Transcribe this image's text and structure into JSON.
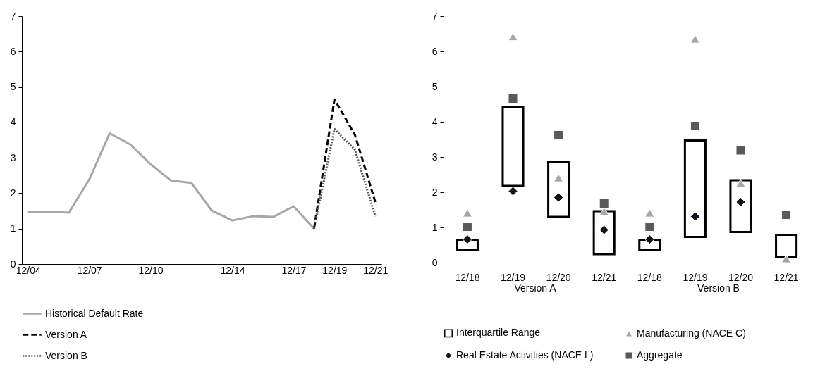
{
  "chart_data": [
    {
      "type": "line",
      "categories": [
        "12/04",
        null,
        null,
        "12/07",
        null,
        null,
        "12/10",
        null,
        null,
        null,
        "12/14",
        null,
        null,
        "12/17",
        null,
        "12/19",
        null,
        "12/21"
      ],
      "series": [
        {
          "name": "Historical Default Rate",
          "color": "#a6a6a6",
          "line_style": "solid",
          "values": [
            1.48,
            1.48,
            1.45,
            2.39,
            3.69,
            3.38,
            2.82,
            2.36,
            2.29,
            1.51,
            1.23,
            1.35,
            1.33,
            1.63,
            1.0,
            null,
            null,
            null
          ]
        },
        {
          "name": "Version A",
          "color": "#000000",
          "line_style": "dashed",
          "values": [
            null,
            null,
            null,
            null,
            null,
            null,
            null,
            null,
            null,
            null,
            null,
            null,
            null,
            null,
            1.0,
            4.65,
            3.65,
            1.75
          ]
        },
        {
          "name": "Version B",
          "color": "#595959",
          "line_style": "dotted",
          "values": [
            null,
            null,
            null,
            null,
            null,
            null,
            null,
            null,
            null,
            null,
            null,
            null,
            null,
            null,
            1.0,
            3.81,
            3.23,
            1.35
          ]
        }
      ],
      "ylim": [
        0,
        7
      ],
      "yticks": [
        0,
        1,
        2,
        3,
        4,
        5,
        6,
        7
      ],
      "grid": false,
      "legend": "bottom"
    },
    {
      "type": "bar",
      "categories": [
        "12/18",
        "12/19",
        "12/20",
        "12/21",
        "12/18",
        "12/19",
        "12/20",
        "12/21"
      ],
      "annotations": [
        "Version A",
        "Version B"
      ],
      "series": [
        {
          "name": "Interquartile Range",
          "type": "bar",
          "color": "#000000",
          "base": [
            0.35,
            2.18,
            1.3,
            0.24,
            0.35,
            0.73,
            0.87,
            0.16
          ],
          "values": [
            0.3,
            2.24,
            1.57,
            1.22,
            0.3,
            2.74,
            1.47,
            0.63
          ]
        },
        {
          "name": "Manufacturing (NACE C)",
          "type": "scatter",
          "marker": "triangle",
          "color": "#a6a6a6",
          "values": [
            1.41,
            6.42,
            2.41,
            1.46,
            1.41,
            6.35,
            2.26,
            0.11
          ]
        },
        {
          "name": "Real Estate Activities (NACE L)",
          "type": "scatter",
          "marker": "diamond",
          "color": "#1a1020",
          "values": [
            0.66,
            2.03,
            1.85,
            0.93,
            0.66,
            1.31,
            1.72,
            null
          ]
        },
        {
          "name": "Aggregate",
          "type": "scatter",
          "marker": "square",
          "color": "#595959",
          "values": [
            1.02,
            4.66,
            3.62,
            1.68,
            1.02,
            3.88,
            3.19,
            1.36
          ]
        }
      ],
      "ylim": [
        0,
        7
      ],
      "yticks": [
        0,
        1,
        2,
        3,
        4,
        5,
        6,
        7
      ],
      "grid": false,
      "legend": "bottom"
    }
  ]
}
